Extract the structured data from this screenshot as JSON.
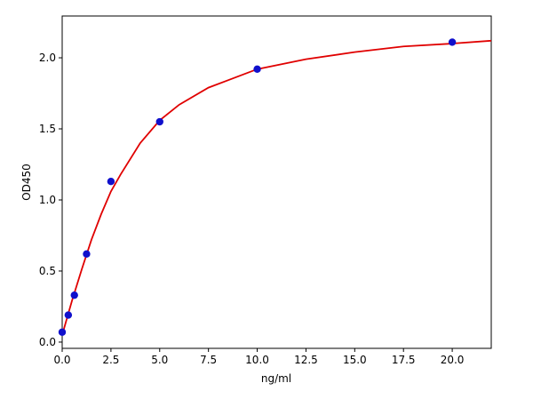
{
  "chart_data": {
    "type": "scatter",
    "xlabel": "ng/ml",
    "ylabel": "OD450",
    "xlim": [
      0,
      22
    ],
    "ylim": [
      -0.044,
      2.294
    ],
    "xticks": [
      {
        "value": 0,
        "label": "0.0"
      },
      {
        "value": 2.5,
        "label": "2.5"
      },
      {
        "value": 5,
        "label": "5.0"
      },
      {
        "value": 7.5,
        "label": "7.5"
      },
      {
        "value": 10,
        "label": "10.0"
      },
      {
        "value": 12.5,
        "label": "12.5"
      },
      {
        "value": 15,
        "label": "15.0"
      },
      {
        "value": 17.5,
        "label": "17.5"
      },
      {
        "value": 20,
        "label": "20.0"
      }
    ],
    "yticks": [
      {
        "value": 0,
        "label": "0.0"
      },
      {
        "value": 0.5,
        "label": "0.5"
      },
      {
        "value": 1,
        "label": "1.0"
      },
      {
        "value": 1.5,
        "label": "1.5"
      },
      {
        "value": 2,
        "label": "2.0"
      }
    ],
    "series": [
      {
        "style": "line",
        "color": "#e00000",
        "x": [
          0,
          0.25,
          0.5,
          0.75,
          1,
          1.5,
          2,
          2.5,
          3,
          4,
          5,
          6,
          7.5,
          10,
          12.5,
          15,
          17.5,
          20,
          22
        ],
        "values": [
          0.05,
          0.17,
          0.29,
          0.4,
          0.51,
          0.72,
          0.9,
          1.06,
          1.18,
          1.4,
          1.56,
          1.67,
          1.79,
          1.92,
          1.99,
          2.04,
          2.08,
          2.1,
          2.12
        ]
      },
      {
        "style": "points",
        "color": "#1010cc",
        "x": [
          0,
          0.3125,
          0.625,
          1.25,
          2.5,
          5,
          10,
          20
        ],
        "values": [
          0.07,
          0.19,
          0.33,
          0.62,
          1.13,
          1.55,
          1.92,
          2.11
        ]
      }
    ]
  }
}
